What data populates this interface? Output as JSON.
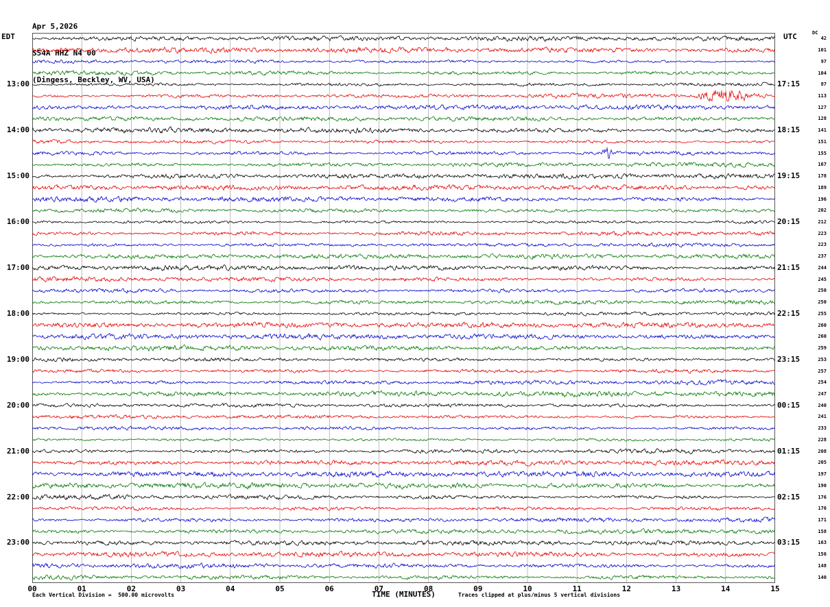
{
  "title": {
    "line1": "Apr 5,2026",
    "line2": "S54A HHZ N4 00",
    "line3": "(Dingess, Beckley, WV, USA)"
  },
  "footer": {
    "left": "Each Vertical Division =  500.00 microvolts",
    "right": "Traces clipped at plus/minus 5 vertical divisions"
  },
  "chart_data": {
    "type": "line",
    "subtype": "helicorder-seismogram",
    "title": "S54A HHZ N4 00 (Dingess, Beckley, WV, USA) Apr 5,2026",
    "rows": 48,
    "minutes_per_row": 15,
    "traces_per_hour": 4,
    "trace_color_cycle": [
      "#000000",
      "#e60000",
      "#0000cc",
      "#007700"
    ],
    "left_axis": {
      "title": "EDT",
      "labels": [
        "13:00",
        "14:00",
        "15:00",
        "16:00",
        "17:00",
        "18:00",
        "19:00",
        "20:00",
        "21:00",
        "22:00",
        "23:00"
      ],
      "first_label_row": 4,
      "rows_per_label": 4
    },
    "right_axis": {
      "title": "UTC",
      "labels": [
        "17:15",
        "18:15",
        "19:15",
        "20:15",
        "21:15",
        "22:15",
        "23:15",
        "00:15",
        "01:15",
        "02:15",
        "03:15"
      ],
      "first_label_row": 4,
      "rows_per_label": 4
    },
    "dc_column": {
      "header": "DC",
      "values": [
        42,
        101,
        97,
        104,
        87,
        113,
        127,
        128,
        141,
        151,
        155,
        167,
        178,
        189,
        196,
        202,
        212,
        223,
        223,
        237,
        244,
        245,
        250,
        250,
        255,
        260,
        260,
        259,
        253,
        257,
        254,
        247,
        240,
        241,
        233,
        228,
        208,
        205,
        197,
        190,
        176,
        176,
        171,
        158,
        163,
        156,
        148,
        140
      ]
    },
    "x_axis": {
      "label": "TIME (MINUTES)",
      "ticks": [
        "00",
        "01",
        "02",
        "03",
        "04",
        "05",
        "06",
        "07",
        "08",
        "09",
        "10",
        "11",
        "12",
        "13",
        "14",
        "15"
      ],
      "range_minutes": [
        0,
        15
      ]
    },
    "grid": {
      "vertical_lines_every_minute": true,
      "grid_color": "#8f8f8f",
      "border_color": "#555555"
    },
    "amplitude": {
      "vertical_division_microvolts": 500.0,
      "clip_divisions": 5,
      "background": "continuous low-amplitude seismic noise on every trace"
    },
    "events": [
      {
        "row": 5,
        "color": "red",
        "start_minute": 13.35,
        "end_minute": 14.55,
        "amplitude_factor": 3.8,
        "description": "high-amplitude burst on red trace below 13:00 EDT"
      },
      {
        "row": 10,
        "color": "blue",
        "start_minute": 11.5,
        "end_minute": 11.72,
        "amplitude_factor": 5.0,
        "description": "short spike on blue trace"
      }
    ]
  }
}
